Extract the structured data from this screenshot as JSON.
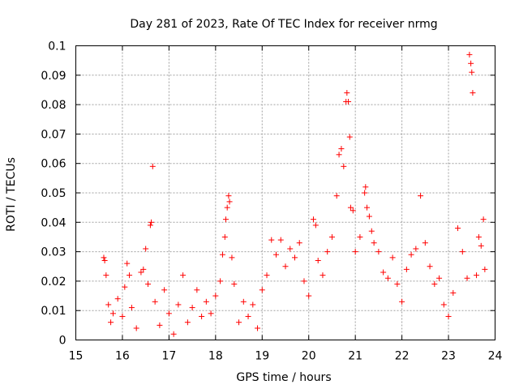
{
  "chart_data": {
    "type": "scatter",
    "title": "Day 281 of 2023, Rate Of TEC Index for receiver nrmg",
    "xlabel": "GPS time / hours",
    "ylabel": "ROTI / TECUs",
    "xlim": [
      15,
      24
    ],
    "ylim": [
      0,
      0.1
    ],
    "xticks": [
      "15",
      "16",
      "17",
      "18",
      "19",
      "20",
      "21",
      "22",
      "23",
      "24"
    ],
    "yticks": [
      "0",
      "0.01",
      "0.02",
      "0.03",
      "0.04",
      "0.05",
      "0.06",
      "0.07",
      "0.08",
      "0.09",
      "0.1"
    ],
    "grid": true,
    "marker": "+",
    "marker_color": "#ff0000",
    "series": [
      {
        "name": "ROTI",
        "note": "dense cloud of measurements, approx. 15.6h to 23.8h; below are visible spikes and a representative sample",
        "points": [
          [
            15.6,
            0.028
          ],
          [
            15.62,
            0.027
          ],
          [
            15.65,
            0.022
          ],
          [
            15.7,
            0.012
          ],
          [
            15.75,
            0.006
          ],
          [
            15.8,
            0.009
          ],
          [
            15.9,
            0.014
          ],
          [
            16.0,
            0.008
          ],
          [
            16.05,
            0.018
          ],
          [
            16.1,
            0.026
          ],
          [
            16.15,
            0.022
          ],
          [
            16.2,
            0.011
          ],
          [
            16.3,
            0.004
          ],
          [
            16.4,
            0.023
          ],
          [
            16.45,
            0.024
          ],
          [
            16.5,
            0.031
          ],
          [
            16.55,
            0.019
          ],
          [
            16.6,
            0.039
          ],
          [
            16.62,
            0.04
          ],
          [
            16.65,
            0.059
          ],
          [
            16.7,
            0.013
          ],
          [
            16.8,
            0.005
          ],
          [
            16.9,
            0.017
          ],
          [
            17.0,
            0.009
          ],
          [
            17.1,
            0.002
          ],
          [
            17.2,
            0.012
          ],
          [
            17.3,
            0.022
          ],
          [
            17.4,
            0.006
          ],
          [
            17.5,
            0.011
          ],
          [
            17.6,
            0.017
          ],
          [
            17.7,
            0.008
          ],
          [
            17.8,
            0.013
          ],
          [
            17.9,
            0.009
          ],
          [
            18.0,
            0.015
          ],
          [
            18.1,
            0.02
          ],
          [
            18.15,
            0.029
          ],
          [
            18.2,
            0.035
          ],
          [
            18.22,
            0.041
          ],
          [
            18.25,
            0.045
          ],
          [
            18.28,
            0.049
          ],
          [
            18.3,
            0.047
          ],
          [
            18.35,
            0.028
          ],
          [
            18.4,
            0.019
          ],
          [
            18.5,
            0.006
          ],
          [
            18.6,
            0.013
          ],
          [
            18.7,
            0.008
          ],
          [
            18.8,
            0.012
          ],
          [
            18.9,
            0.004
          ],
          [
            19.0,
            0.017
          ],
          [
            19.1,
            0.022
          ],
          [
            19.2,
            0.034
          ],
          [
            19.3,
            0.029
          ],
          [
            19.4,
            0.034
          ],
          [
            19.5,
            0.025
          ],
          [
            19.6,
            0.031
          ],
          [
            19.7,
            0.028
          ],
          [
            19.8,
            0.033
          ],
          [
            19.9,
            0.02
          ],
          [
            20.0,
            0.015
          ],
          [
            20.1,
            0.041
          ],
          [
            20.15,
            0.039
          ],
          [
            20.2,
            0.027
          ],
          [
            20.3,
            0.022
          ],
          [
            20.4,
            0.03
          ],
          [
            20.5,
            0.035
          ],
          [
            20.6,
            0.049
          ],
          [
            20.65,
            0.063
          ],
          [
            20.7,
            0.065
          ],
          [
            20.75,
            0.059
          ],
          [
            20.8,
            0.081
          ],
          [
            20.82,
            0.084
          ],
          [
            20.85,
            0.081
          ],
          [
            20.88,
            0.069
          ],
          [
            20.9,
            0.045
          ],
          [
            20.95,
            0.044
          ],
          [
            21.0,
            0.03
          ],
          [
            21.1,
            0.035
          ],
          [
            21.2,
            0.05
          ],
          [
            21.22,
            0.052
          ],
          [
            21.25,
            0.045
          ],
          [
            21.3,
            0.042
          ],
          [
            21.35,
            0.037
          ],
          [
            21.4,
            0.033
          ],
          [
            21.5,
            0.03
          ],
          [
            21.6,
            0.023
          ],
          [
            21.7,
            0.021
          ],
          [
            21.8,
            0.028
          ],
          [
            21.9,
            0.019
          ],
          [
            22.0,
            0.013
          ],
          [
            22.1,
            0.024
          ],
          [
            22.2,
            0.029
          ],
          [
            22.3,
            0.031
          ],
          [
            22.4,
            0.049
          ],
          [
            22.5,
            0.033
          ],
          [
            22.6,
            0.025
          ],
          [
            22.7,
            0.019
          ],
          [
            22.8,
            0.021
          ],
          [
            22.9,
            0.012
          ],
          [
            23.0,
            0.008
          ],
          [
            23.1,
            0.016
          ],
          [
            23.2,
            0.038
          ],
          [
            23.3,
            0.03
          ],
          [
            23.4,
            0.021
          ],
          [
            23.45,
            0.097
          ],
          [
            23.48,
            0.094
          ],
          [
            23.5,
            0.091
          ],
          [
            23.52,
            0.084
          ],
          [
            23.6,
            0.022
          ],
          [
            23.65,
            0.035
          ],
          [
            23.7,
            0.032
          ],
          [
            23.75,
            0.041
          ],
          [
            23.78,
            0.024
          ]
        ]
      }
    ]
  }
}
